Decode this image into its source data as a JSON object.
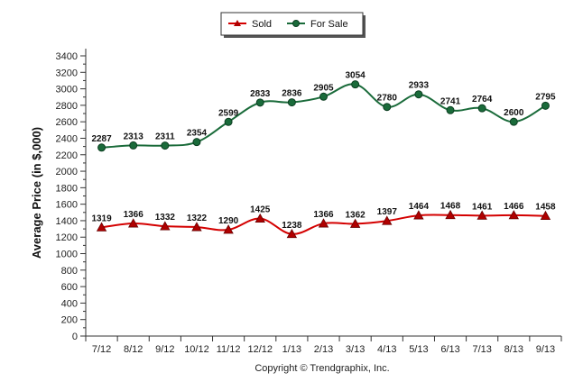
{
  "chart_data": {
    "type": "line",
    "ylabel": "Average Price (in $,000)",
    "xlabel": "",
    "ylim": [
      0,
      3400
    ],
    "yticks": [
      0,
      200,
      400,
      600,
      800,
      1000,
      1200,
      1400,
      1600,
      1800,
      2000,
      2200,
      2400,
      2600,
      2800,
      3000,
      3200,
      3400
    ],
    "categories": [
      "7/12",
      "8/12",
      "9/12",
      "10/12",
      "11/12",
      "12/12",
      "1/13",
      "2/13",
      "3/13",
      "4/13",
      "5/13",
      "6/13",
      "7/13",
      "8/13",
      "9/13"
    ],
    "legend_position": "top-center",
    "grid": false,
    "series": [
      {
        "name": "Sold",
        "color": "#d40000",
        "marker": "triangle",
        "values": [
          1319,
          1366,
          1332,
          1322,
          1290,
          1425,
          1238,
          1366,
          1362,
          1397,
          1464,
          1468,
          1461,
          1466,
          1458
        ]
      },
      {
        "name": "For Sale",
        "color": "#1a6b3a",
        "marker": "circle",
        "values": [
          2287,
          2313,
          2311,
          2354,
          2599,
          2833,
          2836,
          2905,
          3054,
          2780,
          2933,
          2741,
          2764,
          2600,
          2795
        ]
      }
    ],
    "copyright": "Copyright © Trendgraphix, Inc."
  }
}
